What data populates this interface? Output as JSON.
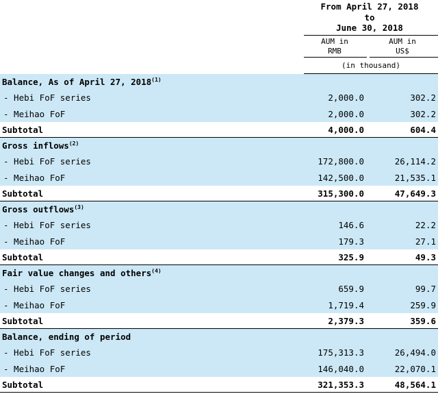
{
  "header": {
    "period_line1": "From April 27, 2018",
    "period_line2": "to",
    "period_line3": "June 30, 2018",
    "col1_line1": "AUM in",
    "col1_line2": "RMB",
    "col2_line1": "AUM in",
    "col2_line2": "US$",
    "unit": "(in thousand)"
  },
  "rows": [
    {
      "kind": "section",
      "label": "Balance, As of April 27, 2018",
      "sup": "(1)"
    },
    {
      "kind": "item",
      "label": "- Hebi FoF series",
      "rmb": "2,000.0",
      "usd": "302.2"
    },
    {
      "kind": "item",
      "label": "- Meihao FoF",
      "rmb": "2,000.0",
      "usd": "302.2"
    },
    {
      "kind": "subtotal",
      "label": "Subtotal",
      "rmb": "4,000.0",
      "usd": "604.4"
    },
    {
      "kind": "section",
      "label": "Gross inflows",
      "sup": "(2)"
    },
    {
      "kind": "item",
      "label": "- Hebi FoF series",
      "rmb": "172,800.0",
      "usd": "26,114.2"
    },
    {
      "kind": "item",
      "label": "- Meihao FoF",
      "rmb": "142,500.0",
      "usd": "21,535.1"
    },
    {
      "kind": "subtotal",
      "label": "Subtotal",
      "rmb": "315,300.0",
      "usd": "47,649.3"
    },
    {
      "kind": "section",
      "label": "Gross outflows",
      "sup": "(3)"
    },
    {
      "kind": "item",
      "label": "- Hebi FoF series",
      "rmb": "146.6",
      "usd": "22.2"
    },
    {
      "kind": "item",
      "label": "- Meihao FoF",
      "rmb": "179.3",
      "usd": "27.1"
    },
    {
      "kind": "subtotal",
      "label": "Subtotal",
      "rmb": "325.9",
      "usd": "49.3"
    },
    {
      "kind": "section",
      "label": "Fair value changes and others",
      "sup": "(4)"
    },
    {
      "kind": "item",
      "label": "- Hebi FoF series",
      "rmb": "659.9",
      "usd": "99.7"
    },
    {
      "kind": "item",
      "label": "- Meihao FoF",
      "rmb": "1,719.4",
      "usd": "259.9"
    },
    {
      "kind": "subtotal",
      "label": "Subtotal",
      "rmb": "2,379.3",
      "usd": "359.6"
    },
    {
      "kind": "section",
      "label": "Balance, ending of period",
      "sup": ""
    },
    {
      "kind": "item",
      "label": "- Hebi FoF series",
      "rmb": "175,313.3",
      "usd": "26,494.0"
    },
    {
      "kind": "item",
      "label": "- Meihao FoF",
      "rmb": "146,040.0",
      "usd": "22,070.1"
    },
    {
      "kind": "subtotal",
      "label": "Subtotal",
      "rmb": "321,353.3",
      "usd": "48,564.1"
    }
  ]
}
